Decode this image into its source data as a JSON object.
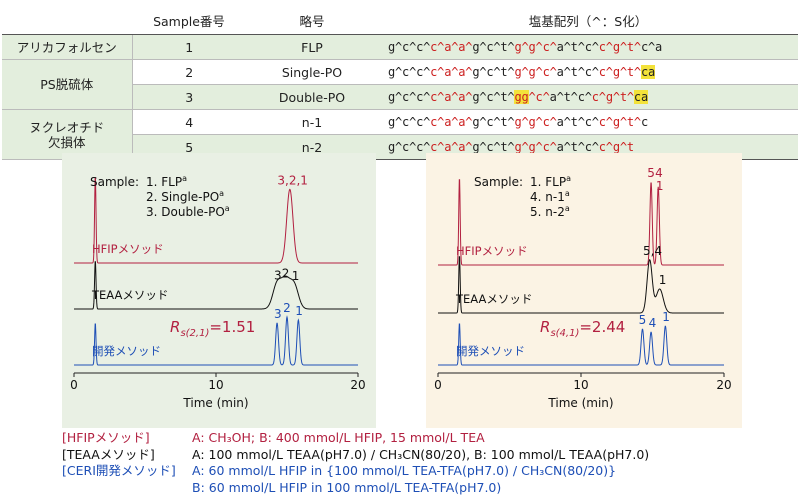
{
  "table": {
    "headers": [
      "",
      "Sample番号",
      "略号",
      "塩基配列（^：S化）"
    ],
    "rows": [
      {
        "category": "アリカフォルセン",
        "rowspan": 1,
        "number": "1",
        "abbr": "FLP",
        "tint": true,
        "segments": [
          [
            "g^c^c^",
            0
          ],
          [
            "c^a^a^",
            1
          ],
          [
            "g^c^t^",
            0
          ],
          [
            "g^g^c^",
            1
          ],
          [
            "a^t^c^",
            0
          ],
          [
            "c^g^t^",
            1
          ],
          [
            "c^a",
            0
          ]
        ]
      },
      {
        "category": "PS脱硫体",
        "rowspan": 2,
        "number": "2",
        "abbr": "Single-PO",
        "tint": false,
        "segments": [
          [
            "g^c^c^",
            0
          ],
          [
            "c^a^a^",
            1
          ],
          [
            "g^c^t^",
            0
          ],
          [
            "g^g^c^",
            1
          ],
          [
            "a^t^c^",
            0
          ],
          [
            "c^g^t^",
            1
          ],
          [
            "ca",
            2
          ]
        ]
      },
      {
        "number": "3",
        "abbr": "Double-PO",
        "tint": true,
        "segments": [
          [
            "g^c^c^",
            0
          ],
          [
            "c^a^a^",
            1
          ],
          [
            "g^c^t^",
            0
          ],
          [
            "gg",
            3
          ],
          [
            "^c^",
            1
          ],
          [
            "a^t^c^",
            0
          ],
          [
            "c^g^t^",
            1
          ],
          [
            "ca",
            2
          ]
        ]
      },
      {
        "category": "ヌクレオチド\n欠損体",
        "rowspan": 2,
        "number": "4",
        "abbr": "n-1",
        "tint": false,
        "segments": [
          [
            "g^c^c^",
            0
          ],
          [
            "c^a^a^",
            1
          ],
          [
            "g^c^t^",
            0
          ],
          [
            "g^g^c^",
            1
          ],
          [
            "a^t^c^",
            0
          ],
          [
            "c^g^t^",
            1
          ],
          [
            "c",
            0
          ]
        ]
      },
      {
        "number": "5",
        "abbr": "n-2",
        "tint": true,
        "segments": [
          [
            "g^c^c^",
            0
          ],
          [
            "c^a^a^",
            1
          ],
          [
            "g^c^t^",
            0
          ],
          [
            "g^g^c^",
            1
          ],
          [
            "a^t^c^",
            0
          ],
          [
            "c^g^t",
            1
          ]
        ]
      }
    ]
  },
  "colors": {
    "hfip": "#b22040",
    "teaa": "#111111",
    "ceri": "#1e4fb6",
    "highlight": "#f3e23a",
    "red_base": "#cc1f1f"
  },
  "chart_data": [
    {
      "type": "line",
      "xlabel": "Time (min)",
      "xlim": [
        0,
        20
      ],
      "xticks": [
        0,
        10,
        20
      ],
      "legend": {
        "title": "Sample:",
        "items": [
          "1. FLP",
          "2. Single-PO",
          "3. Double-PO"
        ],
        "superscripts": [
          "a",
          "a",
          "a"
        ]
      },
      "series": [
        {
          "name": "HFIPメソッド",
          "color": "#b22040",
          "peaks": [
            {
              "t": 1.5,
              "h": 0.95,
              "w": 0.05
            },
            {
              "t": 15.2,
              "h": 0.8,
              "w": 0.22
            }
          ],
          "peak_label": "3,2,1",
          "peak_label_t": 15.4
        },
        {
          "name": "TEAAメソッド",
          "color": "#111111",
          "peaks": [
            {
              "t": 1.5,
              "h": 0.55,
              "w": 0.05
            },
            {
              "t": 14.3,
              "h": 0.28,
              "w": 0.3
            },
            {
              "t": 14.9,
              "h": 0.3,
              "w": 0.3
            },
            {
              "t": 15.5,
              "h": 0.27,
              "w": 0.3
            }
          ],
          "peak_labels": [
            {
              "text": "3",
              "t": 14.35
            },
            {
              "text": "2",
              "t": 14.9
            },
            {
              "text": "1",
              "t": 15.6
            }
          ]
        },
        {
          "name": "開発メソッド",
          "color": "#1e4fb6",
          "peaks": [
            {
              "t": 1.5,
              "h": 0.7,
              "w": 0.05
            },
            {
              "t": 14.3,
              "h": 0.7,
              "w": 0.1
            },
            {
              "t": 15.0,
              "h": 0.8,
              "w": 0.1
            },
            {
              "t": 15.8,
              "h": 0.75,
              "w": 0.1
            }
          ],
          "peak_labels": [
            {
              "text": "3",
              "t": 14.35
            },
            {
              "text": "2",
              "t": 15.0
            },
            {
              "text": "1",
              "t": 15.85
            }
          ]
        }
      ],
      "annotation": {
        "text": "=1.51",
        "symbol": "R",
        "subscript": "s(2,1)",
        "value": 1.51
      }
    },
    {
      "type": "line",
      "xlabel": "Time (min)",
      "xlim": [
        0,
        20
      ],
      "xticks": [
        0,
        10,
        20
      ],
      "legend": {
        "title": "Sample:",
        "items": [
          "1. FLP",
          "4. n-1",
          "5. n-2"
        ],
        "superscripts": [
          "a",
          "a",
          "a"
        ]
      },
      "series": [
        {
          "name": "HFIPメソッド",
          "color": "#b22040",
          "peaks": [
            {
              "t": 1.5,
              "h": 0.95,
              "w": 0.05
            },
            {
              "t": 14.9,
              "h": 0.9,
              "w": 0.08
            },
            {
              "t": 15.4,
              "h": 0.85,
              "w": 0.08
            }
          ],
          "peak_labels": [
            {
              "text": "5",
              "t": 14.9
            },
            {
              "text": "4",
              "t": 15.45
            },
            {
              "text": "1",
              "t": 15.5
            }
          ]
        },
        {
          "name": "TEAAメソッド",
          "color": "#111111",
          "peaks": [
            {
              "t": 1.5,
              "h": 0.6,
              "w": 0.05
            },
            {
              "t": 14.8,
              "h": 0.55,
              "w": 0.18
            },
            {
              "t": 15.5,
              "h": 0.25,
              "w": 0.25
            }
          ],
          "peak_labels": [
            {
              "text": "5,4",
              "t": 15.0
            },
            {
              "text": "1",
              "t": 15.7
            }
          ]
        },
        {
          "name": "開発メソッド",
          "color": "#1e4fb6",
          "peaks": [
            {
              "t": 1.5,
              "h": 0.7,
              "w": 0.05
            },
            {
              "t": 14.3,
              "h": 0.6,
              "w": 0.1
            },
            {
              "t": 14.9,
              "h": 0.55,
              "w": 0.1
            },
            {
              "t": 15.9,
              "h": 0.65,
              "w": 0.1
            }
          ],
          "peak_labels": [
            {
              "text": "5",
              "t": 14.3
            },
            {
              "text": "4",
              "t": 15.0
            },
            {
              "text": "1",
              "t": 15.95
            }
          ]
        }
      ],
      "annotation": {
        "text": "=2.44",
        "symbol": "R",
        "subscript": "s(4,1)",
        "value": 2.44
      }
    }
  ],
  "conditions": [
    {
      "label": "[HFIPメソッド]",
      "text": "A: CH₃OH; B: 400 mmol/L HFIP, 15 mmol/L TEA",
      "cls": "c-hfip"
    },
    {
      "label": "[TEAAメソッド]",
      "text": "A: 100 mmol/L TEAA(pH7.0) / CH₃CN(80/20), B: 100 mmol/L TEAA(pH7.0)",
      "cls": "c-teaa"
    },
    {
      "label": "[CERI開発メソッド]",
      "text": "A: 60 mmol/L HFIP in {100 mmol/L TEA-TFA(pH7.0) / CH₃CN(80/20)}",
      "cls": "c-ceri"
    },
    {
      "label": "",
      "text": "B: 60 mmol/L HFIP in 100 mmol/L TEA-TFA(pH7.0)",
      "cls": "c-ceri"
    }
  ]
}
